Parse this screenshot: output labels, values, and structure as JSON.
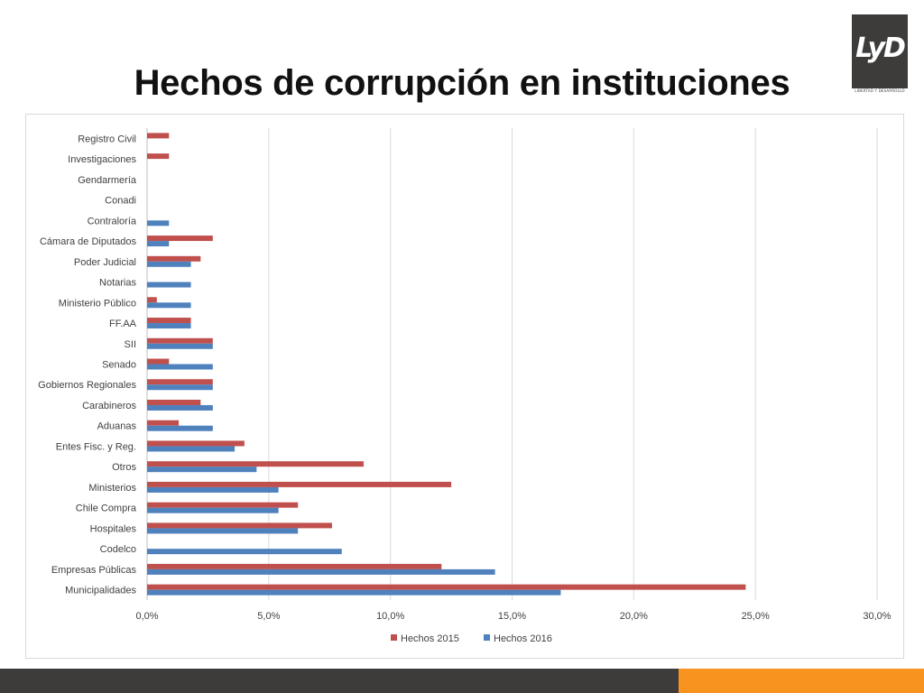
{
  "slide": {
    "title": "Hechos de corrupción en instituciones",
    "logo_text": "LyD",
    "logo_subtext": "LIBERTAD Y DESARROLLO"
  },
  "colors": {
    "series_2015": "#c0504d",
    "series_2016": "#4f81bd",
    "footer_dark": "#3e3c3b",
    "footer_orange": "#f7931e",
    "gridline": "#d9d9d9"
  },
  "chart_data": {
    "type": "bar",
    "orientation": "horizontal",
    "title": "",
    "xlabel": "",
    "ylabel": "",
    "xlim": [
      0,
      30
    ],
    "x_ticks": [
      "0,0%",
      "5,0%",
      "10,0%",
      "15,0%",
      "20,0%",
      "25,0%",
      "30,0%"
    ],
    "x_tick_values": [
      0,
      5,
      10,
      15,
      20,
      25,
      30
    ],
    "grid": true,
    "legend_position": "bottom",
    "categories": [
      "Registro Civil",
      "Investigaciones",
      "Gendarmería",
      "Conadi",
      "Contraloría",
      "Cámara de Diputados",
      "Poder Judicial",
      "Notarias",
      "Ministerio Público",
      "FF.AA",
      "SII",
      "Senado",
      "Gobiernos Regionales",
      "Carabineros",
      "Aduanas",
      "Entes Fisc. y Reg.",
      "Otros",
      "Ministerios",
      "Chile Compra",
      "Hospitales",
      "Codelco",
      "Empresas Públicas",
      "Municipalidades"
    ],
    "series": [
      {
        "name": "Hechos 2015",
        "values": [
          0.9,
          0.9,
          0,
          0,
          0,
          2.7,
          2.2,
          0,
          0.4,
          1.8,
          2.7,
          0.9,
          2.7,
          2.2,
          1.3,
          4.0,
          8.9,
          12.5,
          6.2,
          7.6,
          0,
          12.1,
          24.6
        ]
      },
      {
        "name": "Hechos 2016",
        "values": [
          0,
          0,
          0,
          0,
          0.9,
          0.9,
          1.8,
          1.8,
          1.8,
          1.8,
          2.7,
          2.7,
          2.7,
          2.7,
          2.7,
          3.6,
          4.5,
          5.4,
          5.4,
          6.2,
          8.0,
          14.3,
          17.0
        ]
      }
    ]
  }
}
